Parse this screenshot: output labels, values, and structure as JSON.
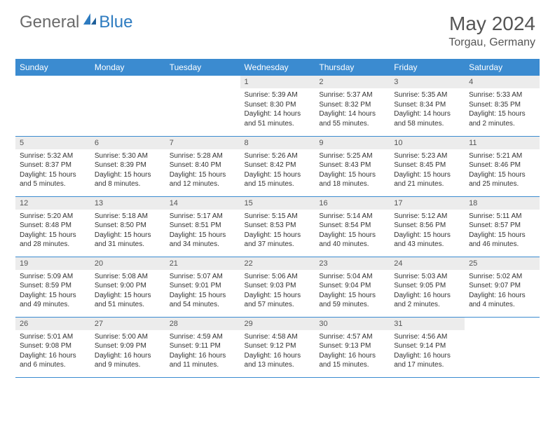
{
  "logo": {
    "general": "General",
    "blue": "Blue"
  },
  "title": "May 2024",
  "location": "Torgau, Germany",
  "colors": {
    "header_bg": "#3b8bd0",
    "header_text": "#ffffff",
    "daynum_bg": "#ececec",
    "border": "#3b8bd0",
    "text": "#333333",
    "logo_gray": "#6a6a6a",
    "logo_blue": "#2d7bc0"
  },
  "weekdays": [
    "Sunday",
    "Monday",
    "Tuesday",
    "Wednesday",
    "Thursday",
    "Friday",
    "Saturday"
  ],
  "weeks": [
    [
      {
        "n": "",
        "sunrise": "",
        "sunset": "",
        "daylight": ""
      },
      {
        "n": "",
        "sunrise": "",
        "sunset": "",
        "daylight": ""
      },
      {
        "n": "",
        "sunrise": "",
        "sunset": "",
        "daylight": ""
      },
      {
        "n": "1",
        "sunrise": "Sunrise: 5:39 AM",
        "sunset": "Sunset: 8:30 PM",
        "daylight": "Daylight: 14 hours and 51 minutes."
      },
      {
        "n": "2",
        "sunrise": "Sunrise: 5:37 AM",
        "sunset": "Sunset: 8:32 PM",
        "daylight": "Daylight: 14 hours and 55 minutes."
      },
      {
        "n": "3",
        "sunrise": "Sunrise: 5:35 AM",
        "sunset": "Sunset: 8:34 PM",
        "daylight": "Daylight: 14 hours and 58 minutes."
      },
      {
        "n": "4",
        "sunrise": "Sunrise: 5:33 AM",
        "sunset": "Sunset: 8:35 PM",
        "daylight": "Daylight: 15 hours and 2 minutes."
      }
    ],
    [
      {
        "n": "5",
        "sunrise": "Sunrise: 5:32 AM",
        "sunset": "Sunset: 8:37 PM",
        "daylight": "Daylight: 15 hours and 5 minutes."
      },
      {
        "n": "6",
        "sunrise": "Sunrise: 5:30 AM",
        "sunset": "Sunset: 8:39 PM",
        "daylight": "Daylight: 15 hours and 8 minutes."
      },
      {
        "n": "7",
        "sunrise": "Sunrise: 5:28 AM",
        "sunset": "Sunset: 8:40 PM",
        "daylight": "Daylight: 15 hours and 12 minutes."
      },
      {
        "n": "8",
        "sunrise": "Sunrise: 5:26 AM",
        "sunset": "Sunset: 8:42 PM",
        "daylight": "Daylight: 15 hours and 15 minutes."
      },
      {
        "n": "9",
        "sunrise": "Sunrise: 5:25 AM",
        "sunset": "Sunset: 8:43 PM",
        "daylight": "Daylight: 15 hours and 18 minutes."
      },
      {
        "n": "10",
        "sunrise": "Sunrise: 5:23 AM",
        "sunset": "Sunset: 8:45 PM",
        "daylight": "Daylight: 15 hours and 21 minutes."
      },
      {
        "n": "11",
        "sunrise": "Sunrise: 5:21 AM",
        "sunset": "Sunset: 8:46 PM",
        "daylight": "Daylight: 15 hours and 25 minutes."
      }
    ],
    [
      {
        "n": "12",
        "sunrise": "Sunrise: 5:20 AM",
        "sunset": "Sunset: 8:48 PM",
        "daylight": "Daylight: 15 hours and 28 minutes."
      },
      {
        "n": "13",
        "sunrise": "Sunrise: 5:18 AM",
        "sunset": "Sunset: 8:50 PM",
        "daylight": "Daylight: 15 hours and 31 minutes."
      },
      {
        "n": "14",
        "sunrise": "Sunrise: 5:17 AM",
        "sunset": "Sunset: 8:51 PM",
        "daylight": "Daylight: 15 hours and 34 minutes."
      },
      {
        "n": "15",
        "sunrise": "Sunrise: 5:15 AM",
        "sunset": "Sunset: 8:53 PM",
        "daylight": "Daylight: 15 hours and 37 minutes."
      },
      {
        "n": "16",
        "sunrise": "Sunrise: 5:14 AM",
        "sunset": "Sunset: 8:54 PM",
        "daylight": "Daylight: 15 hours and 40 minutes."
      },
      {
        "n": "17",
        "sunrise": "Sunrise: 5:12 AM",
        "sunset": "Sunset: 8:56 PM",
        "daylight": "Daylight: 15 hours and 43 minutes."
      },
      {
        "n": "18",
        "sunrise": "Sunrise: 5:11 AM",
        "sunset": "Sunset: 8:57 PM",
        "daylight": "Daylight: 15 hours and 46 minutes."
      }
    ],
    [
      {
        "n": "19",
        "sunrise": "Sunrise: 5:09 AM",
        "sunset": "Sunset: 8:59 PM",
        "daylight": "Daylight: 15 hours and 49 minutes."
      },
      {
        "n": "20",
        "sunrise": "Sunrise: 5:08 AM",
        "sunset": "Sunset: 9:00 PM",
        "daylight": "Daylight: 15 hours and 51 minutes."
      },
      {
        "n": "21",
        "sunrise": "Sunrise: 5:07 AM",
        "sunset": "Sunset: 9:01 PM",
        "daylight": "Daylight: 15 hours and 54 minutes."
      },
      {
        "n": "22",
        "sunrise": "Sunrise: 5:06 AM",
        "sunset": "Sunset: 9:03 PM",
        "daylight": "Daylight: 15 hours and 57 minutes."
      },
      {
        "n": "23",
        "sunrise": "Sunrise: 5:04 AM",
        "sunset": "Sunset: 9:04 PM",
        "daylight": "Daylight: 15 hours and 59 minutes."
      },
      {
        "n": "24",
        "sunrise": "Sunrise: 5:03 AM",
        "sunset": "Sunset: 9:05 PM",
        "daylight": "Daylight: 16 hours and 2 minutes."
      },
      {
        "n": "25",
        "sunrise": "Sunrise: 5:02 AM",
        "sunset": "Sunset: 9:07 PM",
        "daylight": "Daylight: 16 hours and 4 minutes."
      }
    ],
    [
      {
        "n": "26",
        "sunrise": "Sunrise: 5:01 AM",
        "sunset": "Sunset: 9:08 PM",
        "daylight": "Daylight: 16 hours and 6 minutes."
      },
      {
        "n": "27",
        "sunrise": "Sunrise: 5:00 AM",
        "sunset": "Sunset: 9:09 PM",
        "daylight": "Daylight: 16 hours and 9 minutes."
      },
      {
        "n": "28",
        "sunrise": "Sunrise: 4:59 AM",
        "sunset": "Sunset: 9:11 PM",
        "daylight": "Daylight: 16 hours and 11 minutes."
      },
      {
        "n": "29",
        "sunrise": "Sunrise: 4:58 AM",
        "sunset": "Sunset: 9:12 PM",
        "daylight": "Daylight: 16 hours and 13 minutes."
      },
      {
        "n": "30",
        "sunrise": "Sunrise: 4:57 AM",
        "sunset": "Sunset: 9:13 PM",
        "daylight": "Daylight: 16 hours and 15 minutes."
      },
      {
        "n": "31",
        "sunrise": "Sunrise: 4:56 AM",
        "sunset": "Sunset: 9:14 PM",
        "daylight": "Daylight: 16 hours and 17 minutes."
      },
      {
        "n": "",
        "sunrise": "",
        "sunset": "",
        "daylight": ""
      }
    ]
  ]
}
